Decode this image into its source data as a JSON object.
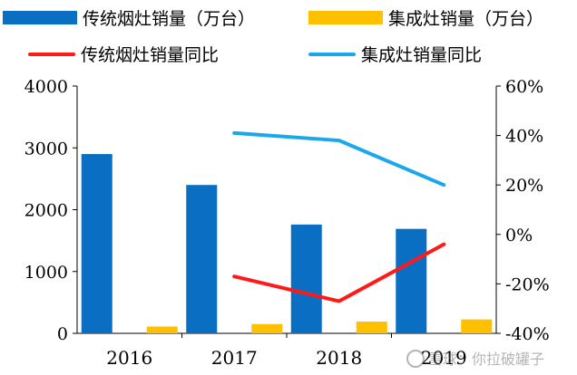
{
  "chart_data": {
    "type": "bar+line",
    "categories": [
      "2016",
      "2017",
      "2018",
      "2019"
    ],
    "bar_series": [
      {
        "name": "传统烟灶销量（万台）",
        "values": [
          2900,
          2400,
          1760,
          1690
        ],
        "color": "#0a6fc2"
      },
      {
        "name": "集成灶销量（万台）",
        "values": [
          110,
          150,
          190,
          225
        ],
        "color": "#ffc000"
      }
    ],
    "line_series": [
      {
        "name": "传统烟灶销量同比",
        "values": [
          null,
          -17,
          -27,
          -4
        ],
        "color": "#ff1a1a"
      },
      {
        "name": "集成灶销量同比",
        "values": [
          null,
          41,
          38,
          20
        ],
        "color": "#1aa7ec"
      }
    ],
    "left_axis": {
      "min": 0,
      "max": 4000,
      "ticks": [
        "0",
        "1000",
        "2000",
        "3000",
        "4000"
      ]
    },
    "right_axis": {
      "min": -40,
      "max": 60,
      "ticks": [
        "-40%",
        "-20%",
        "0%",
        "20%",
        "40%",
        "60%"
      ]
    }
  },
  "watermark": {
    "text": "雪球：你拉破罐子"
  }
}
